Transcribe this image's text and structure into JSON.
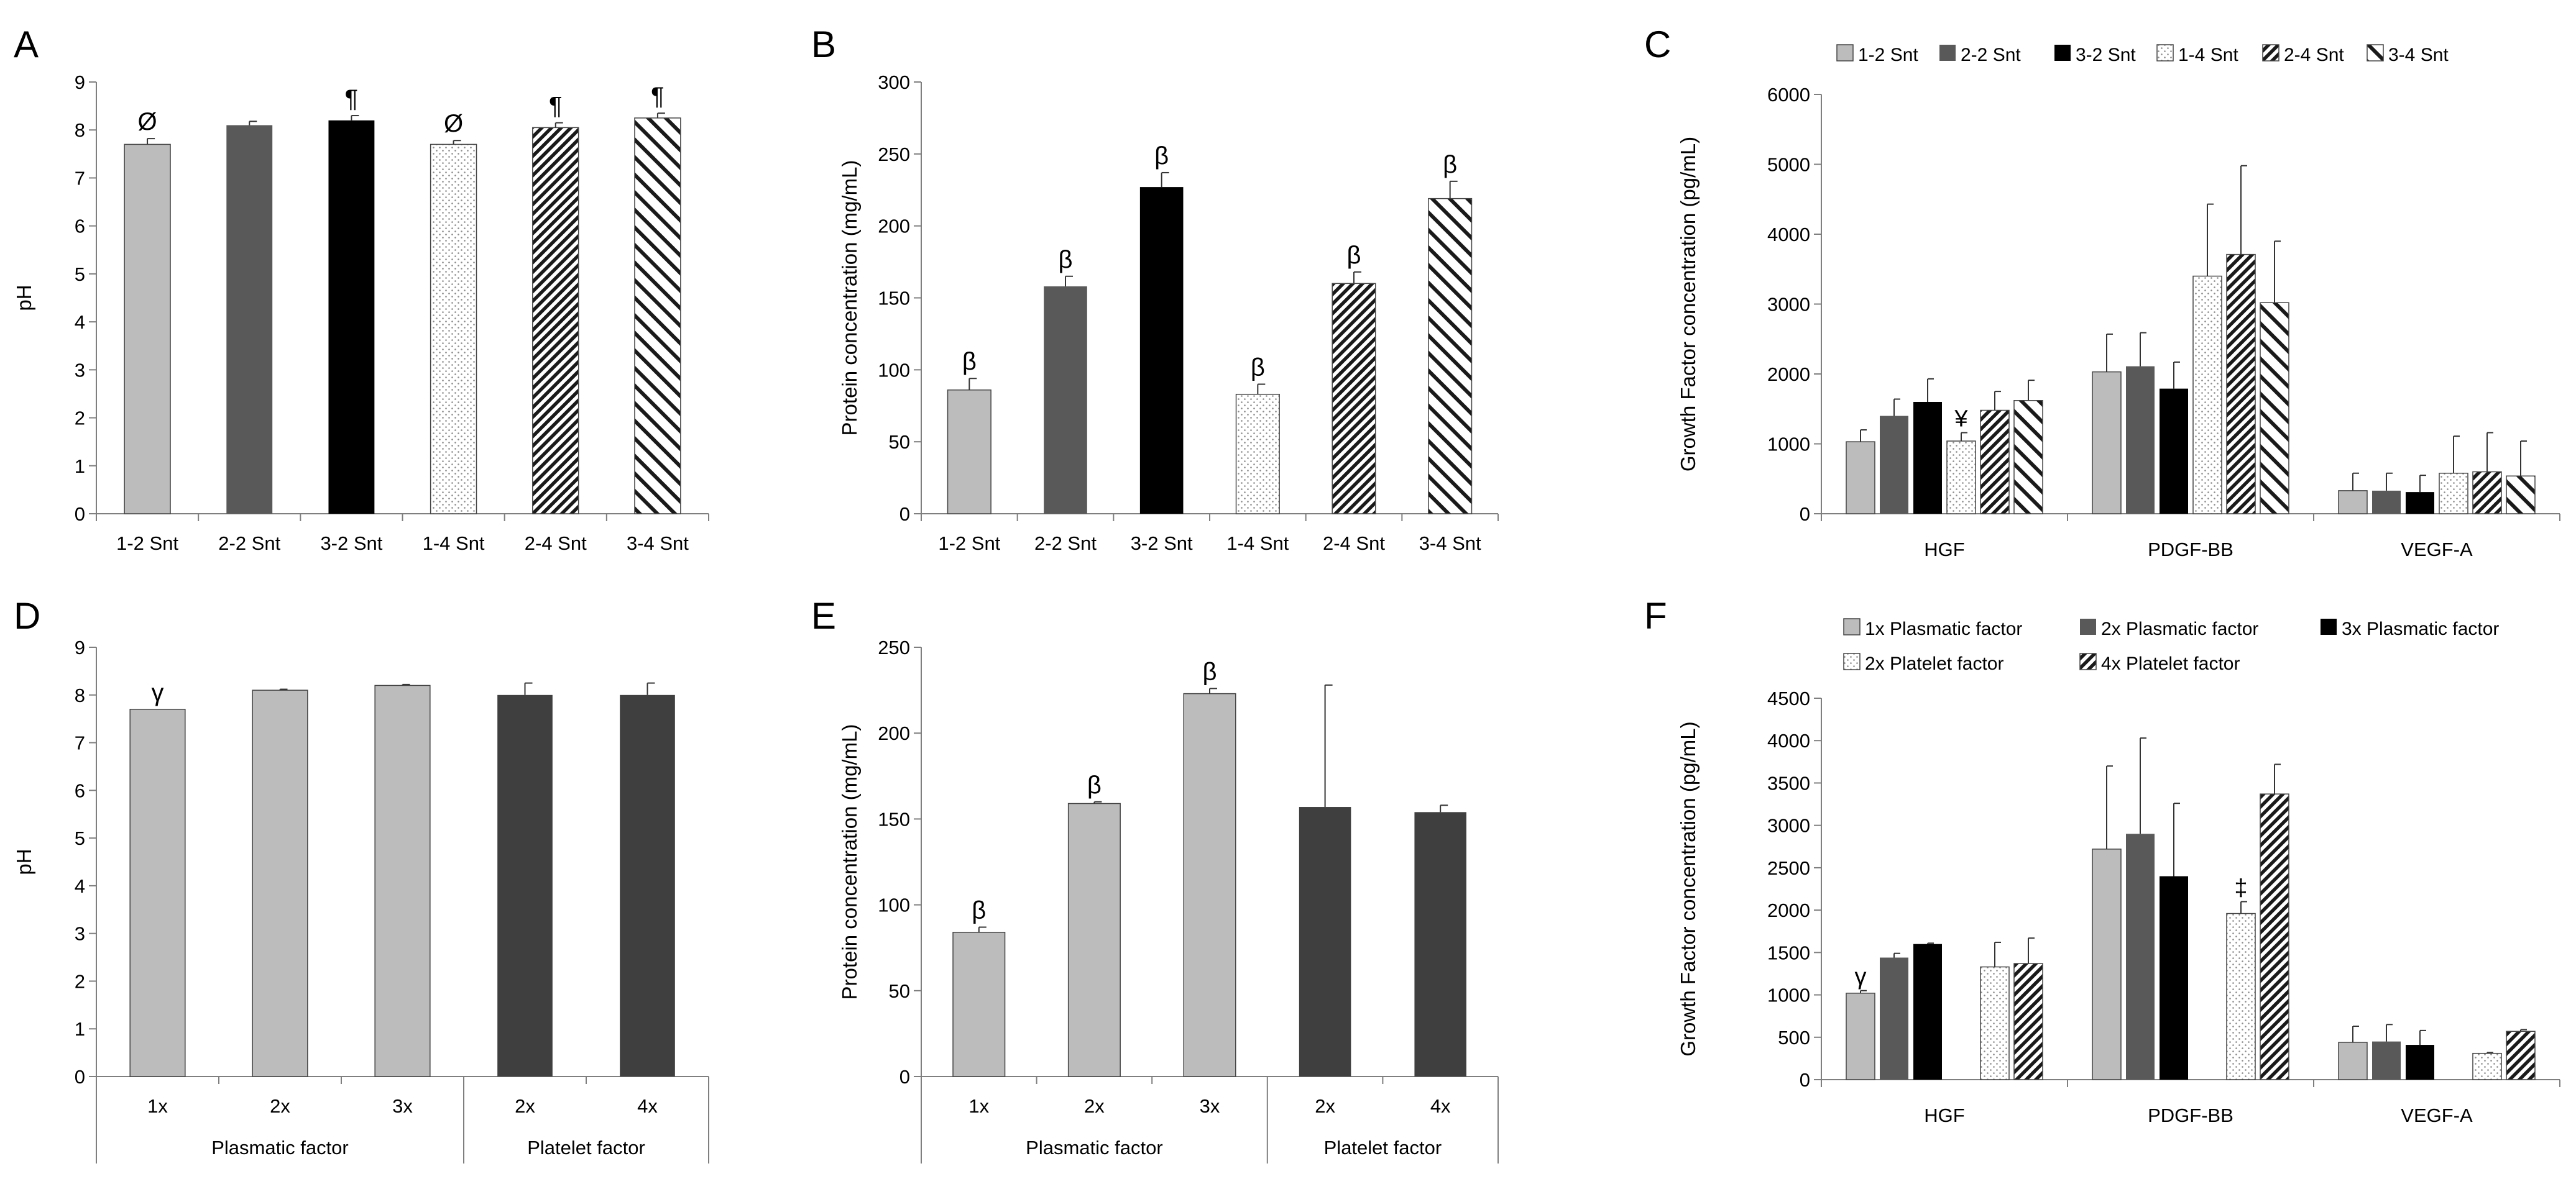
{
  "chart_data": [
    {
      "panel": "A",
      "type": "bar",
      "ylabel": "pH",
      "xlabel": "",
      "ylim": [
        0,
        9
      ],
      "yticks": [
        0,
        1,
        2,
        3,
        4,
        5,
        6,
        7,
        8,
        9
      ],
      "categories": [
        "1-2 Snt",
        "2-2 Snt",
        "3-2 Snt",
        "1-4 Snt",
        "2-4 Snt",
        "3-4 Snt"
      ],
      "values": [
        7.7,
        8.1,
        8.2,
        7.7,
        8.05,
        8.25
      ],
      "errors": [
        0.12,
        0.08,
        0.1,
        0.08,
        0.1,
        0.1
      ],
      "styles": [
        "light",
        "dark",
        "black",
        "dots",
        "hatch-dense",
        "hatch-wide"
      ],
      "annotations": [
        "Ø",
        "",
        "¶",
        "Ø",
        "¶",
        "¶"
      ],
      "legend": "none"
    },
    {
      "panel": "B",
      "type": "bar",
      "ylabel": "Protein concentration (mg/mL)",
      "xlabel": "",
      "ylim": [
        0,
        300
      ],
      "yticks": [
        0,
        50,
        100,
        150,
        200,
        250,
        300
      ],
      "categories": [
        "1-2 Snt",
        "2-2 Snt",
        "3-2 Snt",
        "1-4 Snt",
        "2-4 Snt",
        "3-4 Snt"
      ],
      "values": [
        86,
        158,
        227,
        83,
        160,
        219
      ],
      "errors": [
        8,
        7,
        10,
        7,
        8,
        12
      ],
      "styles": [
        "light",
        "dark",
        "black",
        "dots",
        "hatch-dense",
        "hatch-wide"
      ],
      "annotations": [
        "β",
        "β",
        "β",
        "β",
        "β",
        "β"
      ],
      "legend": "none"
    },
    {
      "panel": "C",
      "type": "bar",
      "ylabel": "Growth Factor concentration (pg/mL)",
      "xlabel": "",
      "ylim": [
        0,
        6000
      ],
      "yticks": [
        0,
        1000,
        2000,
        3000,
        4000,
        5000,
        6000
      ],
      "categories": [
        "HGF",
        "PDGF-BB",
        "VEGF-A"
      ],
      "legend": "top",
      "series": [
        {
          "name": "1-2 Snt",
          "style": "light",
          "values": [
            1030,
            2030,
            330
          ],
          "errors": [
            170,
            540,
            250
          ],
          "annotations": [
            "",
            "",
            ""
          ]
        },
        {
          "name": "2-2 Snt",
          "style": "dark",
          "values": [
            1400,
            2110,
            330
          ],
          "errors": [
            240,
            480,
            250
          ],
          "annotations": [
            "",
            "",
            ""
          ]
        },
        {
          "name": "3-2 Snt",
          "style": "black",
          "values": [
            1600,
            1790,
            310
          ],
          "errors": [
            330,
            380,
            240
          ],
          "annotations": [
            "",
            "",
            ""
          ]
        },
        {
          "name": "1-4 Snt",
          "style": "dots",
          "values": [
            1040,
            3400,
            580
          ],
          "errors": [
            120,
            1030,
            530
          ],
          "annotations": [
            "¥",
            "",
            ""
          ]
        },
        {
          "name": "2-4 Snt",
          "style": "hatch-dense",
          "values": [
            1480,
            3710,
            600
          ],
          "errors": [
            270,
            1270,
            560
          ],
          "annotations": [
            "",
            "",
            ""
          ]
        },
        {
          "name": "3-4 Snt",
          "style": "hatch-wide",
          "values": [
            1620,
            3020,
            540
          ],
          "errors": [
            290,
            880,
            500
          ],
          "annotations": [
            "",
            "",
            ""
          ]
        }
      ]
    },
    {
      "panel": "D",
      "type": "bar",
      "ylabel": "pH",
      "xlabel": "",
      "ylim": [
        0,
        9
      ],
      "yticks": [
        0,
        1,
        2,
        3,
        4,
        5,
        6,
        7,
        8,
        9
      ],
      "categories": [
        "1x",
        "2x",
        "3x",
        "2x",
        "4x"
      ],
      "groups": [
        {
          "label": "Plasmatic factor",
          "count": 3
        },
        {
          "label": "Platelet factor",
          "count": 2
        }
      ],
      "values": [
        7.7,
        8.1,
        8.2,
        8.0,
        8.0
      ],
      "errors": [
        0,
        0.02,
        0.02,
        0.25,
        0.25
      ],
      "styles": [
        "light",
        "light",
        "light",
        "charcoal",
        "charcoal"
      ],
      "annotations": [
        "γ",
        "",
        "",
        "",
        ""
      ],
      "legend": "none"
    },
    {
      "panel": "E",
      "type": "bar",
      "ylabel": "Protein concentration (mg/mL)",
      "xlabel": "",
      "ylim": [
        0,
        250
      ],
      "yticks": [
        0,
        50,
        100,
        150,
        200,
        250
      ],
      "categories": [
        "1x",
        "2x",
        "3x",
        "2x",
        "4x"
      ],
      "groups": [
        {
          "label": "Plasmatic factor",
          "count": 3
        },
        {
          "label": "Platelet factor",
          "count": 2
        }
      ],
      "values": [
        84,
        159,
        223,
        157,
        154
      ],
      "errors": [
        3,
        1,
        3,
        71,
        4
      ],
      "styles": [
        "light",
        "light",
        "light",
        "charcoal",
        "charcoal"
      ],
      "annotations": [
        "β",
        "β",
        "β",
        "",
        ""
      ],
      "legend": "none"
    },
    {
      "panel": "F",
      "type": "bar",
      "ylabel": "Growth Factor concentration (pg/mL)",
      "xlabel": "",
      "ylim": [
        0,
        4500
      ],
      "yticks": [
        0,
        500,
        1000,
        1500,
        2000,
        2500,
        3000,
        3500,
        4000,
        4500
      ],
      "categories": [
        "HGF",
        "PDGF-BB",
        "VEGF-A"
      ],
      "legend": "top",
      "legend_rows": [
        3,
        2
      ],
      "skip_slot": 3,
      "series": [
        {
          "name": "1x Plasmatic factor",
          "style": "light",
          "values": [
            1020,
            2720,
            440
          ],
          "errors": [
            30,
            980,
            190
          ],
          "annotations": [
            "γ",
            "",
            ""
          ]
        },
        {
          "name": "2x Plasmatic factor",
          "style": "dark",
          "values": [
            1440,
            2900,
            450
          ],
          "errors": [
            50,
            1130,
            200
          ],
          "annotations": [
            "",
            "",
            ""
          ]
        },
        {
          "name": "3x Plasmatic factor",
          "style": "black",
          "values": [
            1600,
            2400,
            410
          ],
          "errors": [
            10,
            860,
            170
          ],
          "annotations": [
            "",
            "",
            ""
          ]
        },
        {
          "name": "2x Platelet factor",
          "style": "dots",
          "values": [
            1330,
            1960,
            310
          ],
          "errors": [
            290,
            140,
            10
          ],
          "annotations": [
            "",
            "‡",
            ""
          ]
        },
        {
          "name": "4x Platelet factor",
          "style": "hatch-dense",
          "values": [
            1370,
            3370,
            570
          ],
          "errors": [
            300,
            350,
            20
          ],
          "annotations": [
            "",
            "",
            ""
          ]
        }
      ]
    }
  ],
  "panel_letters": [
    "A",
    "B",
    "C",
    "D",
    "E",
    "F"
  ]
}
